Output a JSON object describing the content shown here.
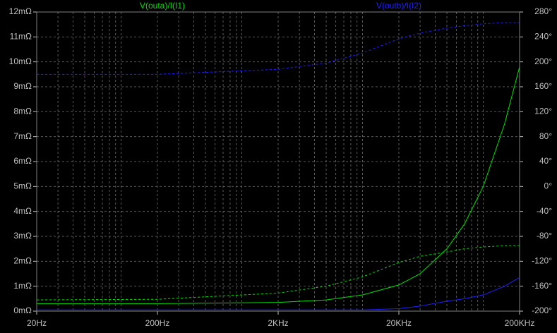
{
  "chart_data": {
    "type": "line",
    "x": [
      20,
      200,
      2000,
      5000,
      10000,
      20000,
      30000,
      50000,
      70000,
      100000,
      150000,
      200000
    ],
    "xscale": "log",
    "xlim": [
      20,
      200000
    ],
    "xticks": [
      {
        "value": 20,
        "label": "20Hz"
      },
      {
        "value": 200,
        "label": "200Hz"
      },
      {
        "value": 2000,
        "label": "2KHz"
      },
      {
        "value": 20000,
        "label": "20KHz"
      },
      {
        "value": 200000,
        "label": "200KHz"
      }
    ],
    "ylim": [
      0,
      12
    ],
    "yticks": [
      {
        "value": 0,
        "label": "0mΩ"
      },
      {
        "value": 1,
        "label": "1mΩ"
      },
      {
        "value": 2,
        "label": "2mΩ"
      },
      {
        "value": 3,
        "label": "3mΩ"
      },
      {
        "value": 4,
        "label": "4mΩ"
      },
      {
        "value": 5,
        "label": "5mΩ"
      },
      {
        "value": 6,
        "label": "6mΩ"
      },
      {
        "value": 7,
        "label": "7mΩ"
      },
      {
        "value": 8,
        "label": "8mΩ"
      },
      {
        "value": 9,
        "label": "9mΩ"
      },
      {
        "value": 10,
        "label": "10mΩ"
      },
      {
        "value": 11,
        "label": "11mΩ"
      },
      {
        "value": 12,
        "label": "12mΩ"
      }
    ],
    "y2lim": [
      -200,
      280
    ],
    "y2ticks": [
      {
        "value": -200,
        "label": "-200°"
      },
      {
        "value": -160,
        "label": "-160°"
      },
      {
        "value": -120,
        "label": "-120°"
      },
      {
        "value": -80,
        "label": "-80°"
      },
      {
        "value": -40,
        "label": "-40°"
      },
      {
        "value": 0,
        "label": "0°"
      },
      {
        "value": 40,
        "label": "40°"
      },
      {
        "value": 80,
        "label": "80°"
      },
      {
        "value": 120,
        "label": "120°"
      },
      {
        "value": 160,
        "label": "160°"
      },
      {
        "value": 200,
        "label": "200°"
      },
      {
        "value": 240,
        "label": "240°"
      },
      {
        "value": 280,
        "label": "280°"
      }
    ],
    "grid": true,
    "series": [
      {
        "name": "V(outa)/I(I1)",
        "color": "#00e000",
        "values": [
          0.3,
          0.3,
          0.35,
          0.45,
          0.65,
          1.05,
          1.5,
          2.5,
          3.5,
          5.0,
          7.5,
          9.8
        ]
      },
      {
        "name": "V(outb)/I(I2)",
        "color": "#2020ff",
        "values": [
          0.05,
          0.05,
          0.05,
          0.05,
          0.05,
          0.1,
          0.2,
          0.4,
          0.5,
          0.65,
          1.0,
          1.35
        ]
      },
      {
        "color": "#00e000",
        "axis": "y2",
        "dashed": true,
        "values": [
          -182,
          -181,
          -171,
          -160,
          -145,
          -122,
          -112,
          -105,
          -100,
          -97,
          -95,
          -95
        ]
      },
      {
        "color": "#2020ff",
        "axis": "y2",
        "dashed": true,
        "values": [
          180,
          180,
          188,
          198,
          214,
          237,
          246,
          254,
          258,
          261,
          263,
          263
        ]
      }
    ]
  }
}
